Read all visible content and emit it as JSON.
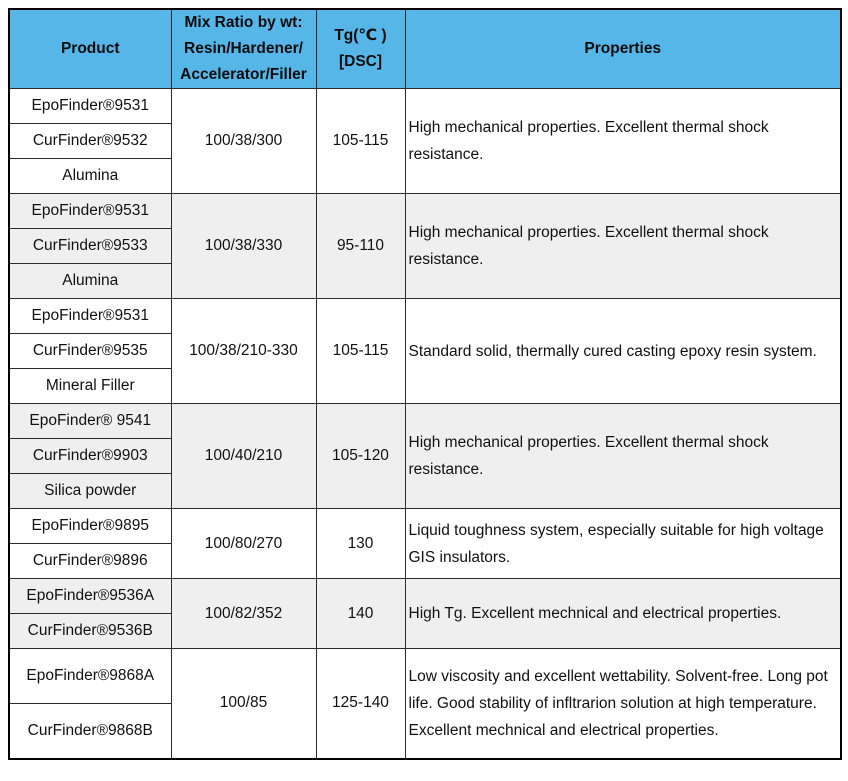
{
  "colors": {
    "header_bg": "#56B6E8",
    "row_alt_bg": "#EFEFEF",
    "border": "#000000",
    "header_text": "#0C0C0C"
  },
  "table": {
    "header": {
      "product": "Product",
      "mix_ratio": "Mix Ratio by wt:\nResin/Hardener/\nAccelerator/Filler",
      "tg": "Tg(℃ )\n[DSC]",
      "properties": "Properties"
    },
    "groups": [
      {
        "products": [
          "EpoFinder®9531",
          "CurFinder®9532",
          "Alumina"
        ],
        "mix_ratio": "100/38/300",
        "tg": "105-115",
        "properties": "High mechanical properties. Excellent thermal shock resistance."
      },
      {
        "products": [
          "EpoFinder®9531",
          "CurFinder®9533",
          "Alumina"
        ],
        "mix_ratio": "100/38/330",
        "tg": "95-110",
        "properties": "High mechanical properties. Excellent thermal shock resistance."
      },
      {
        "products": [
          "EpoFinder®9531",
          "CurFinder®9535",
          "Mineral Filler"
        ],
        "mix_ratio": "100/38/210-330",
        "tg": "105-115",
        "properties": "Standard solid, thermally cured casting epoxy resin system."
      },
      {
        "products": [
          "EpoFinder® 9541",
          "CurFinder®9903",
          "Silica powder"
        ],
        "mix_ratio": "100/40/210",
        "tg": "105-120",
        "properties": "High mechanical properties. Excellent thermal shock resistance."
      },
      {
        "products": [
          "EpoFinder®9895",
          "CurFinder®9896"
        ],
        "mix_ratio": "100/80/270",
        "tg": "130",
        "properties": "Liquid toughness system, especially suitable for high voltage GIS insulators."
      },
      {
        "products": [
          "EpoFinder®9536A",
          "CurFinder®9536B"
        ],
        "mix_ratio": "100/82/352",
        "tg": "140",
        "properties": "High Tg. Excellent mechnical and electrical properties."
      },
      {
        "products": [
          "EpoFinder®9868A",
          "CurFinder®9868B"
        ],
        "mix_ratio": "100/85",
        "tg": "125-140",
        "properties": "Low viscosity and excellent wettability. Solvent-free. Long pot life. Good stability of infltrarion solution at high temperature. Excellent mechnical and electrical properties."
      }
    ]
  }
}
